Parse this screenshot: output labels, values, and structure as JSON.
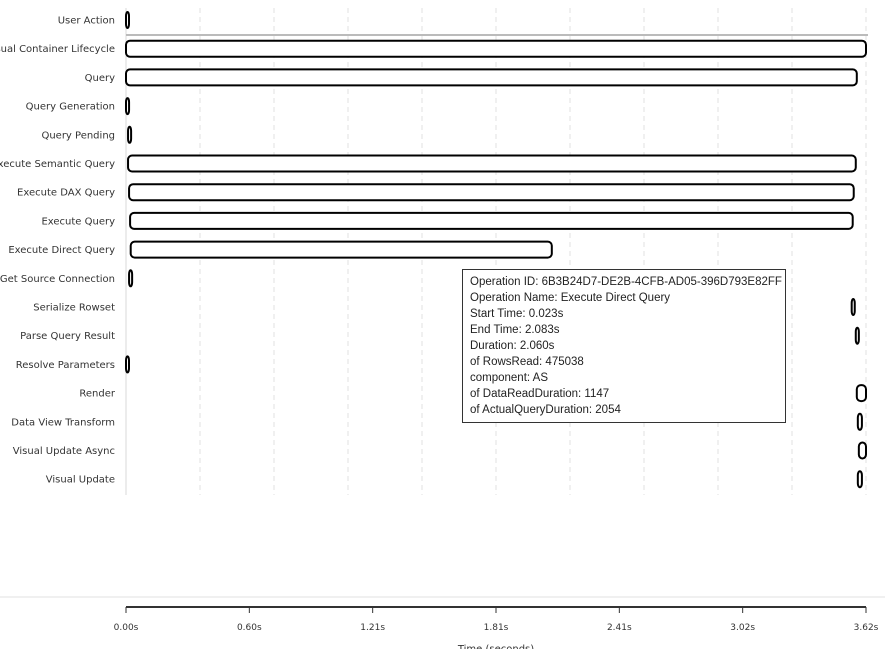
{
  "chart_data": {
    "type": "gantt",
    "xlabel": "Time (seconds)",
    "xlim": [
      0,
      3.62
    ],
    "x_ticks": [
      "0.00s",
      "0.60s",
      "1.21s",
      "1.81s",
      "2.41s",
      "3.02s",
      "3.62s"
    ],
    "grid": "vertical dashed",
    "tasks": [
      {
        "name": "User Action",
        "start": 0,
        "end": 0.01
      },
      {
        "name": "Visual Container Lifecycle",
        "start": 0,
        "end": 3.62
      },
      {
        "name": "Query",
        "start": 0,
        "end": 3.575
      },
      {
        "name": "Query Generation",
        "start": 0,
        "end": 0.015
      },
      {
        "name": "Query Pending",
        "start": 0.01,
        "end": 0.025
      },
      {
        "name": "Execute Semantic Query",
        "start": 0.01,
        "end": 3.57
      },
      {
        "name": "Execute DAX Query",
        "start": 0.015,
        "end": 3.56
      },
      {
        "name": "Execute Query",
        "start": 0.02,
        "end": 3.555
      },
      {
        "name": "Execute Direct Query",
        "start": 0.023,
        "end": 2.083
      },
      {
        "name": "Get Source Connection",
        "start": 0.015,
        "end": 0.03
      },
      {
        "name": "Serialize Rowset",
        "start": 3.55,
        "end": 3.565
      },
      {
        "name": "Parse Query Result",
        "start": 3.57,
        "end": 3.585
      },
      {
        "name": "Resolve Parameters",
        "start": 0,
        "end": 0.01
      },
      {
        "name": "Render",
        "start": 3.575,
        "end": 3.62
      },
      {
        "name": "Data View Transform",
        "start": 3.58,
        "end": 3.6
      },
      {
        "name": "Visual Update Async",
        "start": 3.585,
        "end": 3.62
      },
      {
        "name": "Visual Update",
        "start": 3.58,
        "end": 3.6
      }
    ]
  },
  "tooltip": {
    "lines": [
      "Operation ID: 6B3B24D7-DE2B-4CFB-AD05-396D793E82FF",
      "Operation Name: Execute Direct Query",
      "Start Time: 0.023s",
      "End Time: 2.083s",
      "Duration: 2.060s",
      "of RowsRead: 475038",
      "component: AS",
      "of DataReadDuration: 1147",
      "of ActualQueryDuration: 2054"
    ]
  }
}
